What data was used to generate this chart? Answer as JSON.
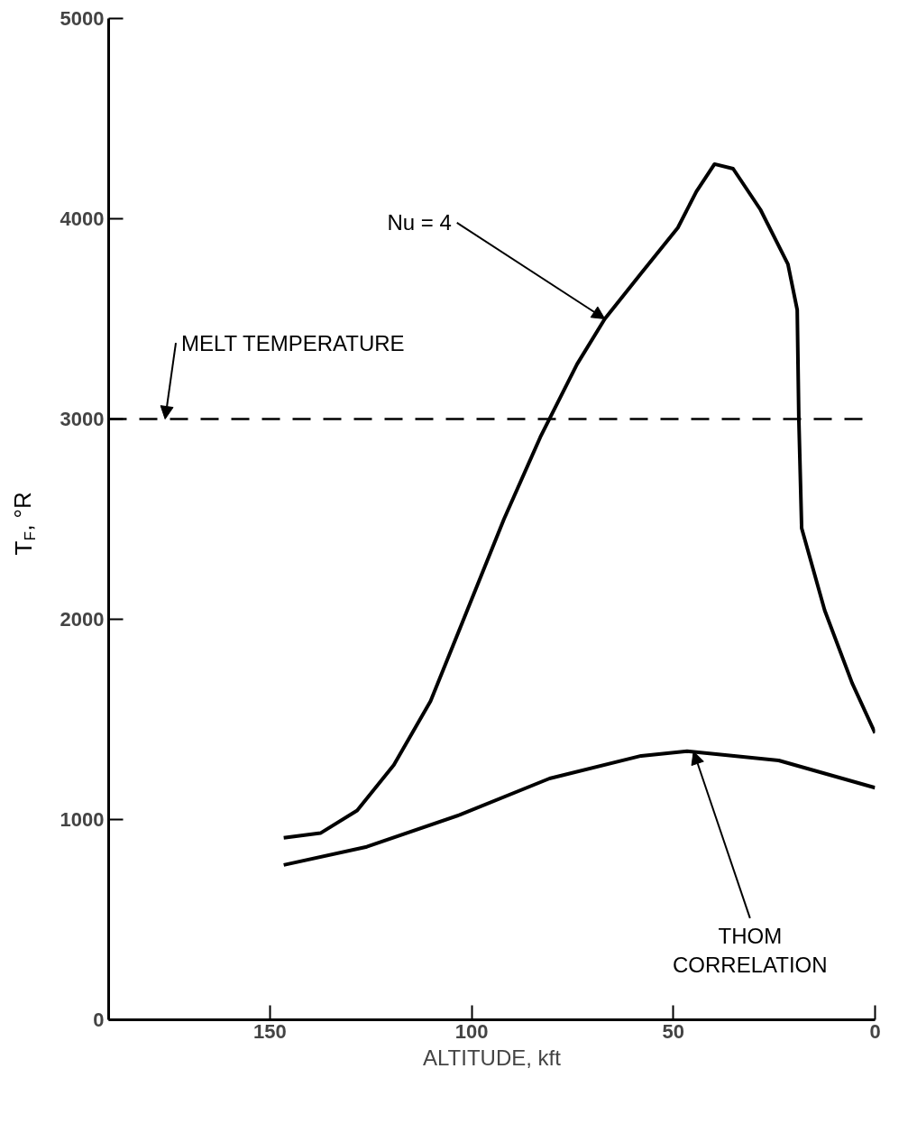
{
  "chart_data": {
    "type": "line",
    "xlabel": "ALTITUDE, kft",
    "ylabel": "T$_{F}$, °R",
    "xlim": [
      190,
      0
    ],
    "xticks": [
      150,
      100,
      50,
      0
    ],
    "ylim": [
      0,
      5000
    ],
    "yticks": [
      0,
      1000,
      2000,
      3000,
      4000,
      5000
    ],
    "line_style": "solid",
    "series": [
      {
        "x": [
          146.6,
          137.5,
          128.4,
          119.3,
          110.2,
          101.1,
          92,
          83,
          73.9,
          67,
          58,
          48.9,
          44.3,
          39.8,
          35.2,
          28.4,
          21.6,
          19.3,
          18.9,
          18.2,
          12.5,
          5.7,
          0
        ],
        "values": [
          909,
          932,
          1045,
          1273,
          1591,
          2045,
          2500,
          2909,
          3273,
          3500,
          3727,
          3955,
          4136,
          4273,
          4250,
          4045,
          3773,
          3545,
          3000,
          2455,
          2045,
          1682,
          1432
        ],
        "color": "#000000"
      },
      {
        "x": [
          146.6,
          126,
          103,
          80.7,
          58,
          46.6,
          23.9,
          0
        ],
        "values": [
          773,
          864,
          1023,
          1205,
          1318,
          1341,
          1295,
          1159
        ],
        "color": "#000000"
      }
    ],
    "ref_lines": [
      {
        "axis": "y",
        "value": 3000,
        "line_style": "dashed",
        "color": "#000000"
      }
    ],
    "annotations": [
      {
        "text": "Nu = 4",
        "x": 67,
        "y": 3500
      },
      {
        "text": "THOM\nCORRELATION",
        "x": 45,
        "y": 1340
      },
      {
        "text": "MELT TEMPERATURE",
        "x": 176,
        "y": 3000
      }
    ]
  }
}
